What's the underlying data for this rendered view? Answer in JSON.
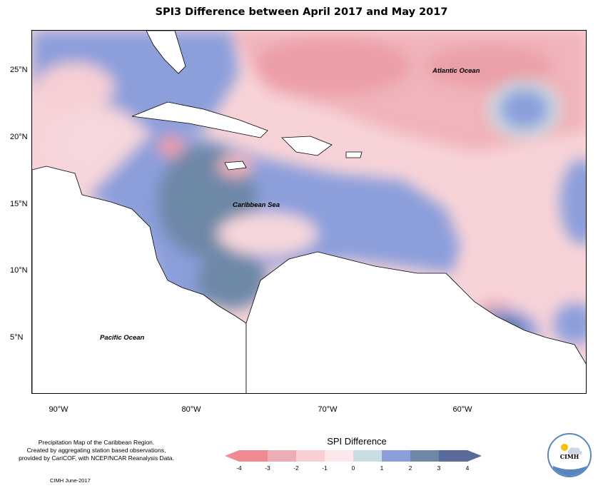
{
  "title": "SPI3 Difference between April 2017 and May 2017",
  "lat_labels": [
    "25°N",
    "20°N",
    "15°N",
    "10°N",
    "5°N"
  ],
  "lon_labels": [
    "90°W",
    "80°W",
    "70°W",
    "60°W"
  ],
  "ocean_labels": {
    "atlantic": "Atlantic Ocean",
    "caribbean": "Caribbean Sea",
    "pacific": "Pacific Ocean"
  },
  "credits": {
    "line1": "Precipitation Map of the Caribbean Region.",
    "line2": "Created by aggregating station based observations,",
    "line3": "provided by CariCOF, with NCEP/NCAR Reanalysis Data.",
    "date": "CIMH June-2017"
  },
  "legend": {
    "title": "SPI Difference",
    "ticks": [
      "-4",
      "-3",
      "-2",
      "-1",
      "0",
      "1",
      "2",
      "3",
      "4"
    ],
    "colors": [
      "#f08a92",
      "#ecaeb4",
      "#f7d0d6",
      "#fbe8ea",
      "#c8dde4",
      "#8c9fdb",
      "#6e88a8",
      "#5a6a9a"
    ]
  },
  "logo": {
    "text": "CIMH",
    "icon": "sun-cloud-logo-icon"
  }
}
